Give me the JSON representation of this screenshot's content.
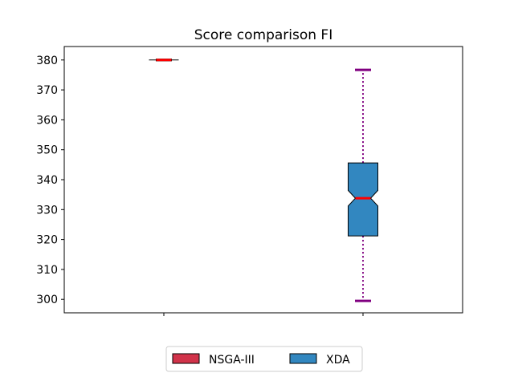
{
  "chart_data": {
    "type": "box",
    "title": "Score comparison FI",
    "xlabel": "",
    "ylabel": "",
    "ylim": [
      295.5,
      384.5
    ],
    "yticks": [
      300,
      310,
      320,
      330,
      340,
      350,
      360,
      370,
      380
    ],
    "grid": false,
    "legend_position": "bottom-center",
    "notched": true,
    "series": [
      {
        "name": "NSGA-III",
        "color": "#d1334a",
        "median_color": "#ff0000",
        "whisker_color": "#000000",
        "whisker_low": 380.0,
        "q1": 380.0,
        "median": 380.0,
        "q3": 380.0,
        "whisker_high": 380.0,
        "notch_low": 380.0,
        "notch_high": 380.0
      },
      {
        "name": "XDA",
        "color": "#3287c0",
        "median_color": "#ff0000",
        "whisker_color": "#800080",
        "whisker_low": 299.5,
        "q1": 321.2,
        "median": 333.8,
        "q3": 345.6,
        "whisker_high": 376.7,
        "notch_low": 331.2,
        "notch_high": 336.4
      }
    ]
  }
}
